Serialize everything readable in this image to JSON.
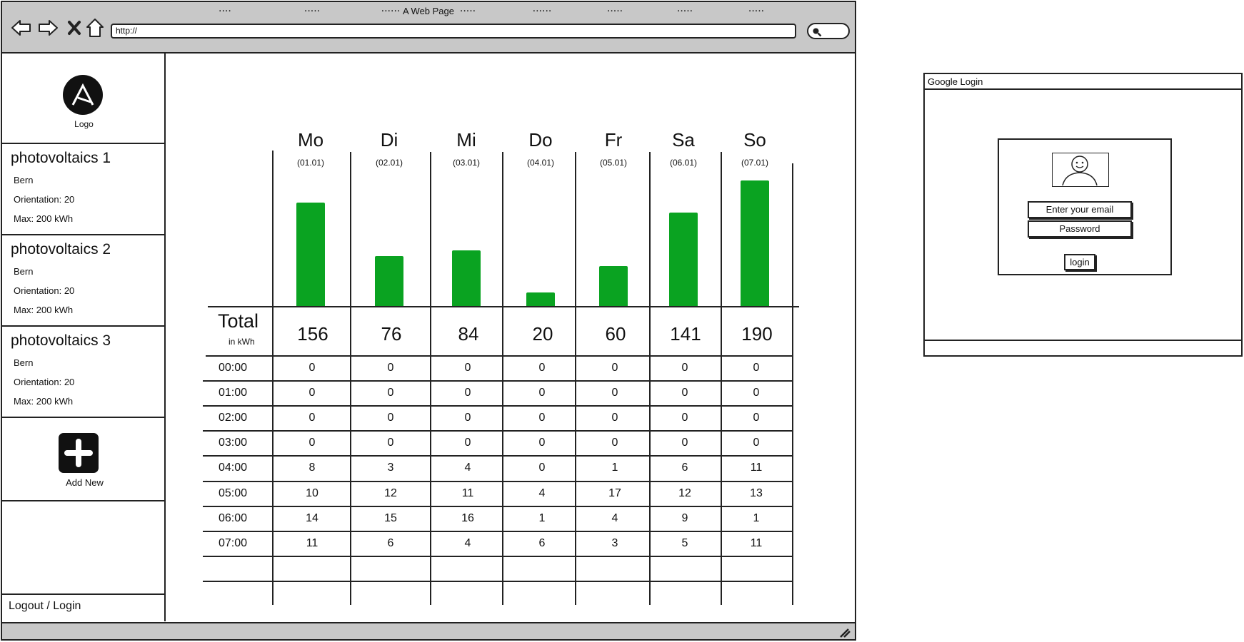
{
  "browser": {
    "title": "A Web Page",
    "url": "http://",
    "icons": [
      "back-arrow-icon",
      "forward-arrow-icon",
      "close-icon",
      "home-icon",
      "search-icon"
    ]
  },
  "sidebar": {
    "logo_label": "Logo",
    "plants": [
      {
        "name": "photovoltaics 1",
        "location": "Bern",
        "orientation": "Orientation: 20",
        "max": "Max: 200 kWh"
      },
      {
        "name": "photovoltaics 2",
        "location": "Bern",
        "orientation": "Orientation: 20",
        "max": "Max: 200 kWh"
      },
      {
        "name": "photovoltaics 3",
        "location": "Bern",
        "orientation": "Orientation: 20",
        "max": "Max: 200 kWh"
      }
    ],
    "add_new_label": "Add New",
    "logout_label": "Logout / Login"
  },
  "colors": {
    "bar": "#0aa321",
    "chrome": "#c8c8c8",
    "ink": "#222222"
  },
  "chart_data": {
    "type": "bar",
    "categories": [
      "Mo",
      "Di",
      "Mi",
      "Do",
      "Fr",
      "Sa",
      "So"
    ],
    "dates": [
      "(01.01)",
      "(02.01)",
      "(03.01)",
      "(04.01)",
      "(05.01)",
      "(06.01)",
      "(07.01)"
    ],
    "values": [
      156,
      76,
      84,
      20,
      60,
      141,
      190
    ]
  },
  "table": {
    "total_label": "Total",
    "total_unit": "in kWh",
    "totals": [
      "156",
      "76",
      "84",
      "20",
      "60",
      "141",
      "190"
    ],
    "rows": [
      {
        "time": "00:00",
        "cells": [
          "0",
          "0",
          "0",
          "0",
          "0",
          "0",
          "0"
        ]
      },
      {
        "time": "01:00",
        "cells": [
          "0",
          "0",
          "0",
          "0",
          "0",
          "0",
          "0"
        ]
      },
      {
        "time": "02:00",
        "cells": [
          "0",
          "0",
          "0",
          "0",
          "0",
          "0",
          "0"
        ]
      },
      {
        "time": "03:00",
        "cells": [
          "0",
          "0",
          "0",
          "0",
          "0",
          "0",
          "0"
        ]
      },
      {
        "time": "04:00",
        "cells": [
          "8",
          "3",
          "4",
          "0",
          "1",
          "6",
          "11"
        ]
      },
      {
        "time": "05:00",
        "cells": [
          "10",
          "12",
          "11",
          "4",
          "17",
          "12",
          "13"
        ]
      },
      {
        "time": "06:00",
        "cells": [
          "14",
          "15",
          "16",
          "1",
          "4",
          "9",
          "1"
        ]
      },
      {
        "time": "07:00",
        "cells": [
          "11",
          "6",
          "4",
          "6",
          "3",
          "5",
          "11"
        ]
      },
      {
        "time": "....",
        "cells": [
          ".....",
          "......",
          ".....",
          "......",
          ".....",
          ".....",
          "....."
        ]
      }
    ]
  },
  "login": {
    "title": "Google Login",
    "email_placeholder": "Enter your email",
    "password_placeholder": "Password",
    "button_label": "login"
  }
}
